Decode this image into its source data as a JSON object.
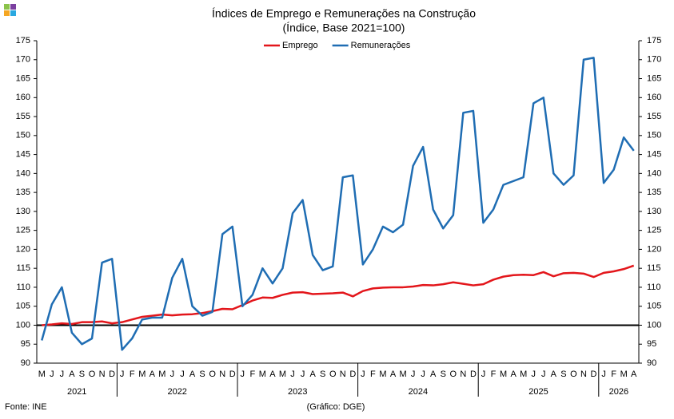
{
  "chart_data": {
    "type": "line",
    "title": "Índices de Emprego e Remunerações na Construção",
    "subtitle": "(Índice, Base 2021=100)",
    "category_groups": [
      {
        "label": "2021",
        "categories": [
          "M",
          "J",
          "J",
          "A",
          "S",
          "O",
          "N",
          "D"
        ]
      },
      {
        "label": "2022",
        "categories": [
          "J",
          "F",
          "M",
          "A",
          "M",
          "J",
          "J",
          "A",
          "S",
          "O",
          "N",
          "D"
        ]
      },
      {
        "label": "2023",
        "categories": [
          "J",
          "F",
          "M",
          "A",
          "M",
          "J",
          "J",
          "A",
          "S",
          "O",
          "N",
          "D"
        ]
      },
      {
        "label": "2024",
        "categories": [
          "J",
          "F",
          "M",
          "A",
          "M",
          "J",
          "J",
          "A",
          "S",
          "O",
          "N",
          "D"
        ]
      },
      {
        "label": "2025",
        "categories": [
          "J",
          "F",
          "M",
          "A",
          "M",
          "J",
          "J",
          "A",
          "S",
          "O",
          "N",
          "D"
        ]
      },
      {
        "label": "2026",
        "categories": [
          "J",
          "F",
          "M",
          "A"
        ]
      }
    ],
    "series": [
      {
        "name": "Emprego",
        "color": "#e3161b",
        "values": [
          100,
          100.2,
          100.5,
          100.3,
          100.8,
          100.8,
          101,
          100.5,
          100.8,
          101.5,
          102.2,
          102.5,
          102.8,
          102.6,
          102.8,
          102.9,
          103.2,
          103.7,
          104.3,
          104.2,
          105.3,
          106.5,
          107.3,
          107.2,
          108,
          108.6,
          108.7,
          108.2,
          108.3,
          108.4,
          108.6,
          107.6,
          109,
          109.7,
          109.9,
          110,
          110,
          110.2,
          110.6,
          110.5,
          110.8,
          111.3,
          110.9,
          110.5,
          110.8,
          112,
          112.8,
          113.2,
          113.3,
          113.2,
          114,
          112.9,
          113.7,
          113.8,
          113.6,
          112.7,
          113.8,
          114.2,
          114.8,
          115.7
        ]
      },
      {
        "name": "Remunerações",
        "color": "#1f6db3",
        "values": [
          96,
          105.5,
          110,
          98,
          95,
          96.5,
          116.5,
          117.5,
          93.5,
          96.5,
          101.5,
          102,
          102,
          112.5,
          117.5,
          105,
          102.5,
          103.5,
          124,
          126,
          105,
          108,
          115,
          111,
          115,
          129.5,
          133,
          118.5,
          114.5,
          115.5,
          139,
          139.5,
          116,
          120,
          126,
          124.5,
          126.5,
          142,
          147,
          130.5,
          125.5,
          129,
          156,
          156.5,
          127,
          130.5,
          137,
          138,
          139,
          158.5,
          160,
          140,
          137,
          139.5,
          170,
          170.5,
          137.5,
          141,
          149.5,
          146
        ]
      }
    ],
    "reference_line": 100,
    "ylim": [
      90,
      175
    ],
    "yticks": [
      90,
      95,
      100,
      105,
      110,
      115,
      120,
      125,
      130,
      135,
      140,
      145,
      150,
      155,
      160,
      165,
      170,
      175
    ],
    "y2lim": [
      90,
      175
    ],
    "y2ticks": [
      90,
      95,
      100,
      105,
      110,
      115,
      120,
      125,
      130,
      135,
      140,
      145,
      150,
      155,
      160,
      165,
      170,
      175
    ],
    "legend": "top",
    "source": "Fonte: INE",
    "credit": "(Gráfico: DGE)"
  }
}
